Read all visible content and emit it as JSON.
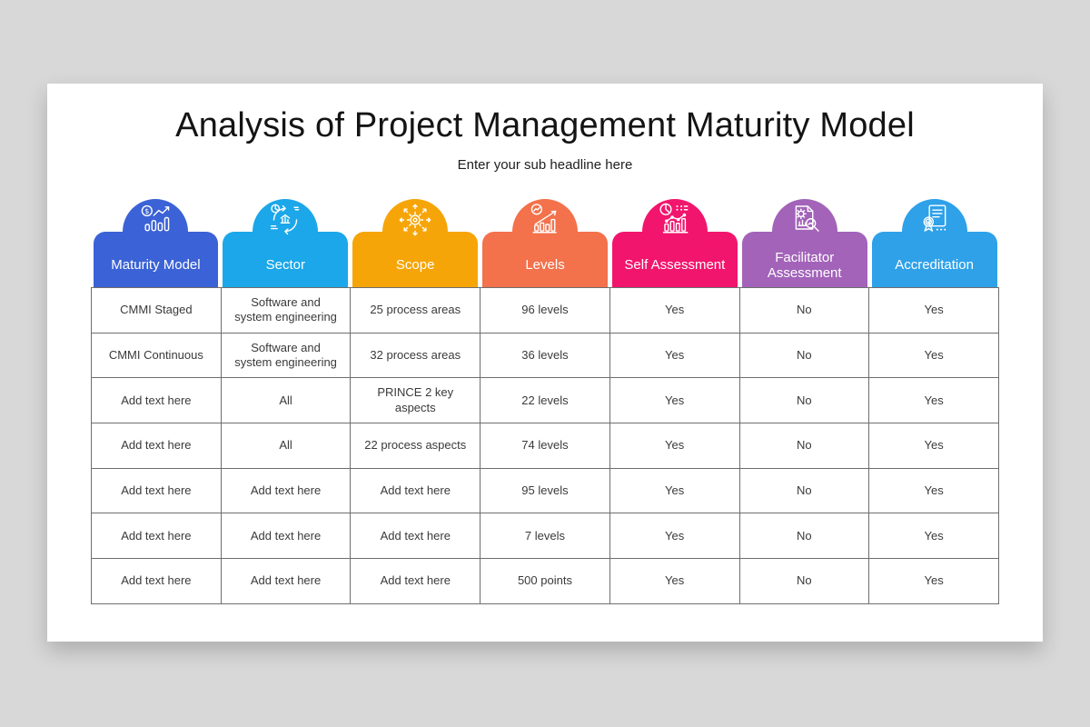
{
  "slide": {
    "title": "Analysis of Project Management Maturity Model",
    "subtitle": "Enter your sub headline here"
  },
  "columns": [
    {
      "label": "Maturity Model",
      "color": "#3B62D6",
      "icon": "finance-growth-icon"
    },
    {
      "label": "Sector",
      "color": "#1BA7E9",
      "icon": "sector-cycle-icon"
    },
    {
      "label": "Scope",
      "color": "#F6A508",
      "icon": "scope-expand-gear-icon"
    },
    {
      "label": "Levels",
      "color": "#F3714B",
      "icon": "levels-growth-chart-icon"
    },
    {
      "label": "Self Assessment",
      "color": "#F2156D",
      "icon": "self-assessment-chart-icon"
    },
    {
      "label": "Facilitator Assessment",
      "color": "#A263B9",
      "icon": "facilitator-review-icon"
    },
    {
      "label": "Accreditation",
      "color": "#2FA1E9",
      "icon": "accreditation-certificate-icon"
    }
  ],
  "table": {
    "rows": [
      [
        "CMMI Staged",
        "Software and system engineering",
        "25 process areas",
        "96 levels",
        "Yes",
        "No",
        "Yes"
      ],
      [
        "CMMI Continuous",
        "Software and system engineering",
        "32 process areas",
        "36 levels",
        "Yes",
        "No",
        "Yes"
      ],
      [
        "Add text here",
        "All",
        "PRINCE 2 key aspects",
        "22 levels",
        "Yes",
        "No",
        "Yes"
      ],
      [
        "Add text here",
        "All",
        "22 process aspects",
        "74 levels",
        "Yes",
        "No",
        "Yes"
      ],
      [
        "Add text here",
        "Add text here",
        "Add text here",
        "95 levels",
        "Yes",
        "No",
        "Yes"
      ],
      [
        "Add text here",
        "Add text here",
        "Add text here",
        "7 levels",
        "Yes",
        "No",
        "Yes"
      ],
      [
        "Add text here",
        "Add text here",
        "Add text here",
        "500 points",
        "Yes",
        "No",
        "Yes"
      ]
    ]
  }
}
